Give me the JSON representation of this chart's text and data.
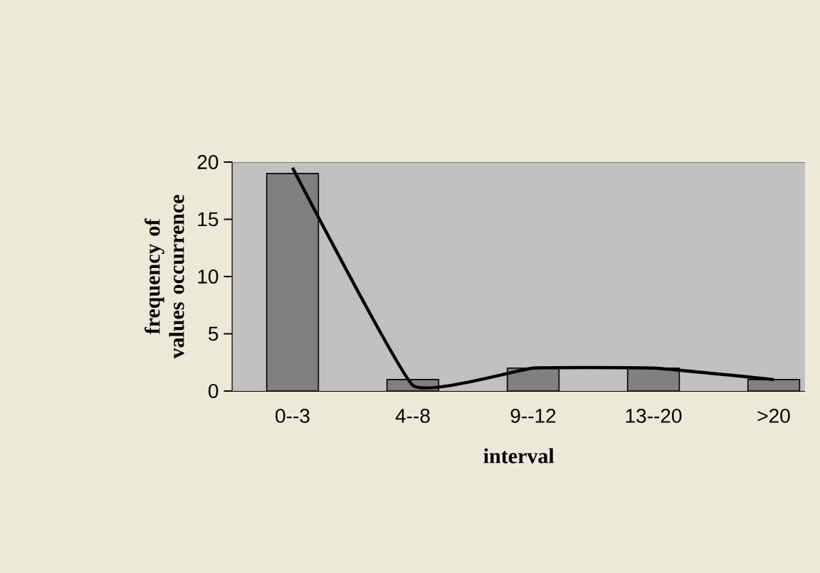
{
  "chart_data": {
    "type": "bar",
    "xlabel": "interval",
    "ylabel": "frequency of values occurrence",
    "categories": [
      "0--3",
      "4--8",
      "9--12",
      "13--20",
      ">20"
    ],
    "series": [
      {
        "type": "bar",
        "color": "#808080",
        "values": [
          19,
          1,
          2,
          2,
          1
        ]
      },
      {
        "type": "line",
        "color": "#000000",
        "values": [
          19.5,
          0.5,
          2,
          2,
          1
        ]
      }
    ],
    "ylim": [
      0,
      20
    ],
    "yticks": [
      0,
      5,
      10,
      15,
      20
    ],
    "grid": false
  }
}
